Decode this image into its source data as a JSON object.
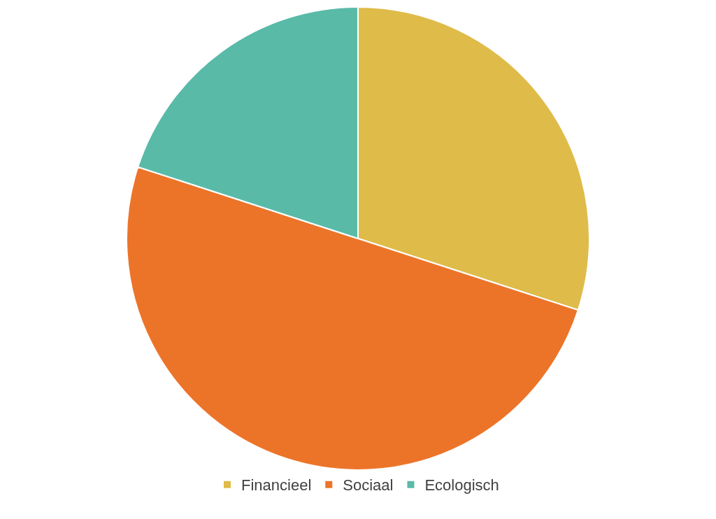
{
  "chart_data": {
    "type": "pie",
    "categories": [
      "Financieel",
      "Sociaal",
      "Ecologisch"
    ],
    "values": [
      30,
      50,
      20
    ],
    "colors": [
      "#dfbb4a",
      "#ec7429",
      "#59baa8"
    ],
    "legend": "bottom"
  }
}
